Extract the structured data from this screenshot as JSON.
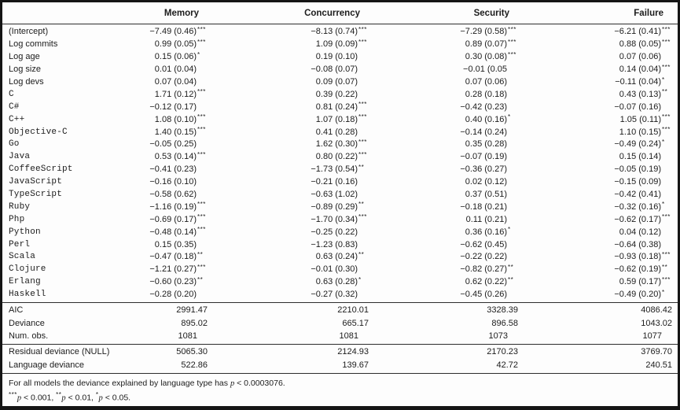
{
  "table": {
    "columns": [
      "Memory",
      "Concurrency",
      "Security",
      "Failure"
    ],
    "coef_rows": [
      {
        "label": "(Intercept)",
        "code": false,
        "cells": [
          {
            "v": "−7.49 (0.46)",
            "s": "***"
          },
          {
            "v": "−8.13 (0.74)",
            "s": "***"
          },
          {
            "v": "−7.29 (0.58)",
            "s": "***"
          },
          {
            "v": "−6.21 (0.41)",
            "s": "***"
          }
        ]
      },
      {
        "label": "Log commits",
        "code": false,
        "cells": [
          {
            "v": "0.99 (0.05)",
            "s": "***"
          },
          {
            "v": "1.09 (0.09)",
            "s": "***"
          },
          {
            "v": "0.89 (0.07)",
            "s": "***"
          },
          {
            "v": "0.88 (0.05)",
            "s": "***"
          }
        ]
      },
      {
        "label": "Log age",
        "code": false,
        "cells": [
          {
            "v": "0.15 (0.06)",
            "s": "*"
          },
          {
            "v": "0.19 (0.10)",
            "s": ""
          },
          {
            "v": "0.30 (0.08)",
            "s": "***"
          },
          {
            "v": "0.07 (0.06)",
            "s": ""
          }
        ]
      },
      {
        "label": "Log size",
        "code": false,
        "cells": [
          {
            "v": "0.01 (0.04)",
            "s": ""
          },
          {
            "v": "−0.08 (0.07)",
            "s": ""
          },
          {
            "v": "−0.01 (0.05",
            "s": ""
          },
          {
            "v": "0.14 (0.04)",
            "s": "***"
          }
        ]
      },
      {
        "label": "Log devs",
        "code": false,
        "cells": [
          {
            "v": "0.07 (0.04)",
            "s": ""
          },
          {
            "v": "0.09 (0.07)",
            "s": ""
          },
          {
            "v": "0.07 (0.06)",
            "s": ""
          },
          {
            "v": "−0.11 (0.04)",
            "s": "*"
          }
        ]
      },
      {
        "label": "C",
        "code": true,
        "cells": [
          {
            "v": "1.71 (0.12)",
            "s": "***"
          },
          {
            "v": "0.39 (0.22)",
            "s": ""
          },
          {
            "v": "0.28 (0.18)",
            "s": ""
          },
          {
            "v": "0.43 (0.13)",
            "s": "**"
          }
        ]
      },
      {
        "label": "C#",
        "code": true,
        "cells": [
          {
            "v": "−0.12 (0.17)",
            "s": ""
          },
          {
            "v": "0.81 (0.24)",
            "s": "***"
          },
          {
            "v": "−0.42 (0.23)",
            "s": ""
          },
          {
            "v": "−0.07 (0.16)",
            "s": ""
          }
        ]
      },
      {
        "label": "C++",
        "code": true,
        "cells": [
          {
            "v": "1.08 (0.10)",
            "s": "***"
          },
          {
            "v": "1.07 (0.18)",
            "s": "***"
          },
          {
            "v": "0.40 (0.16)",
            "s": "*"
          },
          {
            "v": "1.05 (0.11)",
            "s": "***"
          }
        ]
      },
      {
        "label": "Objective-C",
        "code": true,
        "cells": [
          {
            "v": "1.40 (0.15)",
            "s": "***"
          },
          {
            "v": "0.41 (0.28)",
            "s": ""
          },
          {
            "v": "−0.14 (0.24)",
            "s": ""
          },
          {
            "v": "1.10 (0.15)",
            "s": "***"
          }
        ]
      },
      {
        "label": "Go",
        "code": true,
        "cells": [
          {
            "v": "−0.05 (0.25)",
            "s": ""
          },
          {
            "v": "1.62 (0.30)",
            "s": "***"
          },
          {
            "v": "0.35 (0.28)",
            "s": ""
          },
          {
            "v": "−0.49 (0.24)",
            "s": "*"
          }
        ]
      },
      {
        "label": "Java",
        "code": true,
        "cells": [
          {
            "v": "0.53 (0.14)",
            "s": "***"
          },
          {
            "v": "0.80 (0.22)",
            "s": "***"
          },
          {
            "v": "−0.07 (0.19)",
            "s": ""
          },
          {
            "v": "0.15 (0.14)",
            "s": ""
          }
        ]
      },
      {
        "label": "CoffeeScript",
        "code": true,
        "cells": [
          {
            "v": "−0.41 (0.23)",
            "s": ""
          },
          {
            "v": "−1.73 (0.54)",
            "s": "**"
          },
          {
            "v": "−0.36 (0.27)",
            "s": ""
          },
          {
            "v": "−0.05 (0.19)",
            "s": ""
          }
        ]
      },
      {
        "label": "JavaScript",
        "code": true,
        "cells": [
          {
            "v": "−0.16 (0.10)",
            "s": ""
          },
          {
            "v": "−0.21 (0.16)",
            "s": ""
          },
          {
            "v": "0.02 (0.12)",
            "s": ""
          },
          {
            "v": "−0.15 (0.09)",
            "s": ""
          }
        ]
      },
      {
        "label": "TypeScript",
        "code": true,
        "cells": [
          {
            "v": "−0.58 (0.62)",
            "s": ""
          },
          {
            "v": "−0.63 (1.02)",
            "s": ""
          },
          {
            "v": "0.37 (0.51)",
            "s": ""
          },
          {
            "v": "−0.42 (0.41)",
            "s": ""
          }
        ]
      },
      {
        "label": "Ruby",
        "code": true,
        "cells": [
          {
            "v": "−1.16 (0.19)",
            "s": "***"
          },
          {
            "v": "−0.89 (0.29)",
            "s": "**"
          },
          {
            "v": "−0.18 (0.21)",
            "s": ""
          },
          {
            "v": "−0.32 (0.16)",
            "s": "*"
          }
        ]
      },
      {
        "label": "Php",
        "code": true,
        "cells": [
          {
            "v": "−0.69 (0.17)",
            "s": "***"
          },
          {
            "v": "−1.70 (0.34)",
            "s": "***"
          },
          {
            "v": "0.11 (0.21)",
            "s": ""
          },
          {
            "v": "−0.62 (0.17)",
            "s": "***"
          }
        ]
      },
      {
        "label": "Python",
        "code": true,
        "cells": [
          {
            "v": "−0.48 (0.14)",
            "s": "***"
          },
          {
            "v": "−0.25 (0.22)",
            "s": ""
          },
          {
            "v": "0.36 (0.16)",
            "s": "*"
          },
          {
            "v": "0.04 (0.12)",
            "s": ""
          }
        ]
      },
      {
        "label": "Perl",
        "code": true,
        "cells": [
          {
            "v": "0.15 (0.35)",
            "s": ""
          },
          {
            "v": "−1.23 (0.83)",
            "s": ""
          },
          {
            "v": "−0.62 (0.45)",
            "s": ""
          },
          {
            "v": "−0.64 (0.38)",
            "s": ""
          }
        ]
      },
      {
        "label": "Scala",
        "code": true,
        "cells": [
          {
            "v": "−0.47 (0.18)",
            "s": "**"
          },
          {
            "v": "0.63 (0.24)",
            "s": "**"
          },
          {
            "v": "−0.22 (0.22)",
            "s": ""
          },
          {
            "v": "−0.93 (0.18)",
            "s": "***"
          }
        ]
      },
      {
        "label": "Clojure",
        "code": true,
        "cells": [
          {
            "v": "−1.21 (0.27)",
            "s": "***"
          },
          {
            "v": "−0.01 (0.30)",
            "s": ""
          },
          {
            "v": "−0.82 (0.27)",
            "s": "**"
          },
          {
            "v": "−0.62 (0.19)",
            "s": "**"
          }
        ]
      },
      {
        "label": "Erlang",
        "code": true,
        "cells": [
          {
            "v": "−0.60 (0.23)",
            "s": "**"
          },
          {
            "v": "0.63 (0.28)",
            "s": "*"
          },
          {
            "v": "0.62 (0.22)",
            "s": "**"
          },
          {
            "v": "0.59 (0.17)",
            "s": "***"
          }
        ]
      },
      {
        "label": "Haskell",
        "code": true,
        "cells": [
          {
            "v": "−0.28 (0.20)",
            "s": ""
          },
          {
            "v": "−0.27 (0.32)",
            "s": ""
          },
          {
            "v": "−0.45 (0.26)",
            "s": ""
          },
          {
            "v": "−0.49 (0.20)",
            "s": "*"
          }
        ]
      }
    ],
    "stats_rows": [
      {
        "label": "AIC",
        "code": false,
        "cells": [
          "2991.47",
          "2210.01",
          "3328.39",
          "4086.42"
        ]
      },
      {
        "label": "Deviance",
        "code": false,
        "cells": [
          "895.02",
          "665.17",
          "896.58",
          "1043.02"
        ]
      },
      {
        "label": "Num. obs.",
        "code": false,
        "cells": [
          "1081",
          "1081",
          "1073",
          "1077"
        ]
      }
    ],
    "deviance_rows": [
      {
        "label": "Residual deviance (NULL)",
        "code": false,
        "cells": [
          "5065.30",
          "2124.93",
          "2170.23",
          "3769.70"
        ]
      },
      {
        "label": "Language deviance",
        "code": false,
        "cells": [
          "522.86",
          "139.67",
          "42.72",
          "240.51"
        ]
      }
    ],
    "footnotes": {
      "note": {
        "pre": "For all models the deviance explained by language type has ",
        "var": "p",
        "post": " < 0.0003076."
      },
      "sig": [
        {
          "stars": "***",
          "var": "p",
          "text": " < 0.001, "
        },
        {
          "stars": "**",
          "var": "p",
          "text": " < 0.01, "
        },
        {
          "stars": "*",
          "var": "p",
          "text": " < 0.05."
        }
      ]
    }
  }
}
